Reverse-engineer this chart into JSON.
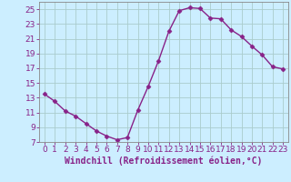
{
  "x": [
    0,
    1,
    2,
    3,
    4,
    5,
    6,
    7,
    8,
    9,
    10,
    11,
    12,
    13,
    14,
    15,
    16,
    17,
    18,
    19,
    20,
    21,
    22,
    23
  ],
  "y": [
    13.5,
    12.5,
    11.2,
    10.5,
    9.5,
    8.5,
    7.8,
    7.3,
    7.6,
    11.3,
    14.5,
    18.0,
    22.0,
    24.8,
    25.2,
    25.1,
    23.8,
    23.7,
    22.2,
    21.3,
    20.0,
    18.8,
    17.2,
    16.9
  ],
  "line_color": "#882288",
  "marker": "D",
  "marker_size": 2.5,
  "xlabel": "Windchill (Refroidissement éolien,°C)",
  "xlabel_fontsize": 7,
  "bg_color": "#cceeff",
  "grid_color": "#aacccc",
  "ylim": [
    7,
    26
  ],
  "xlim": [
    -0.5,
    23.5
  ],
  "yticks": [
    7,
    9,
    11,
    13,
    15,
    17,
    19,
    21,
    23,
    25
  ],
  "xticks": [
    0,
    1,
    2,
    3,
    4,
    5,
    6,
    7,
    8,
    9,
    10,
    11,
    12,
    13,
    14,
    15,
    16,
    17,
    18,
    19,
    20,
    21,
    22,
    23
  ],
  "xtick_labels": [
    "0",
    "1",
    "2",
    "3",
    "4",
    "5",
    "6",
    "7",
    "8",
    "9",
    "10",
    "11",
    "12",
    "13",
    "14",
    "15",
    "16",
    "17",
    "18",
    "19",
    "20",
    "21",
    "22",
    "23"
  ],
  "tick_fontsize": 6.5,
  "spine_color": "#888888",
  "line_width": 1.0
}
